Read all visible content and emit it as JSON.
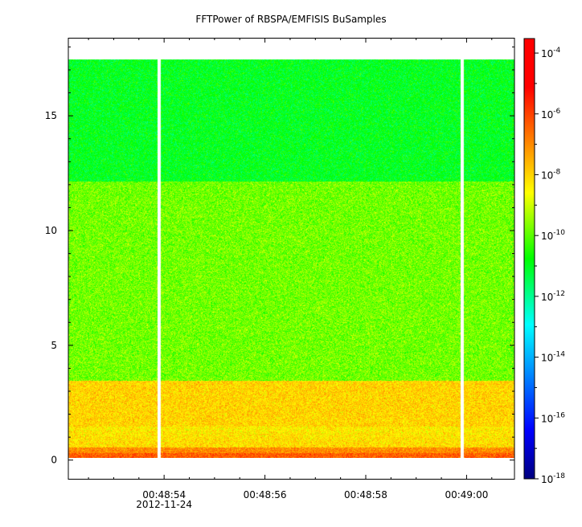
{
  "title": "FFTPower of RBSPA/EMFISIS  BuSamples",
  "chart_data": {
    "type": "heatmap",
    "title": "FFTPower of RBSPA/EMFISIS  BuSamples",
    "xlabel": "",
    "ylabel": "",
    "x_ticks": [
      "00:48:54",
      "00:48:56",
      "00:48:58",
      "00:49:00"
    ],
    "x_tick_values_s": [
      2934,
      2936,
      2938,
      2940
    ],
    "x_range_s": [
      2932.1,
      2940.95
    ],
    "date_label": "2012-11-24",
    "y_ticks": [
      0,
      5,
      10,
      15
    ],
    "ylim": [
      -0.85,
      18.4
    ],
    "data_y_range": [
      0,
      17.5
    ],
    "gaps_at_s": [
      "00:48:53.9",
      "00:48:59.9"
    ],
    "bands": [
      {
        "y_range": [
          0,
          0.6
        ],
        "log_power": -7.0
      },
      {
        "y_range": [
          0.6,
          3.5
        ],
        "log_power": -8.0
      },
      {
        "y_range": [
          3.5,
          12.2
        ],
        "log_power": -9.8
      },
      {
        "y_range": [
          12.2,
          17.5
        ],
        "log_power": -11.0
      }
    ],
    "colorbar": {
      "scale": "log",
      "range": [
        1e-18,
        0.0003
      ],
      "tick_base": "10",
      "tick_exponents": [
        "-4",
        "-6",
        "-8",
        "-10",
        "-12",
        "-14",
        "-16",
        "-18"
      ],
      "colormap": "rainbow"
    },
    "grid": false
  }
}
